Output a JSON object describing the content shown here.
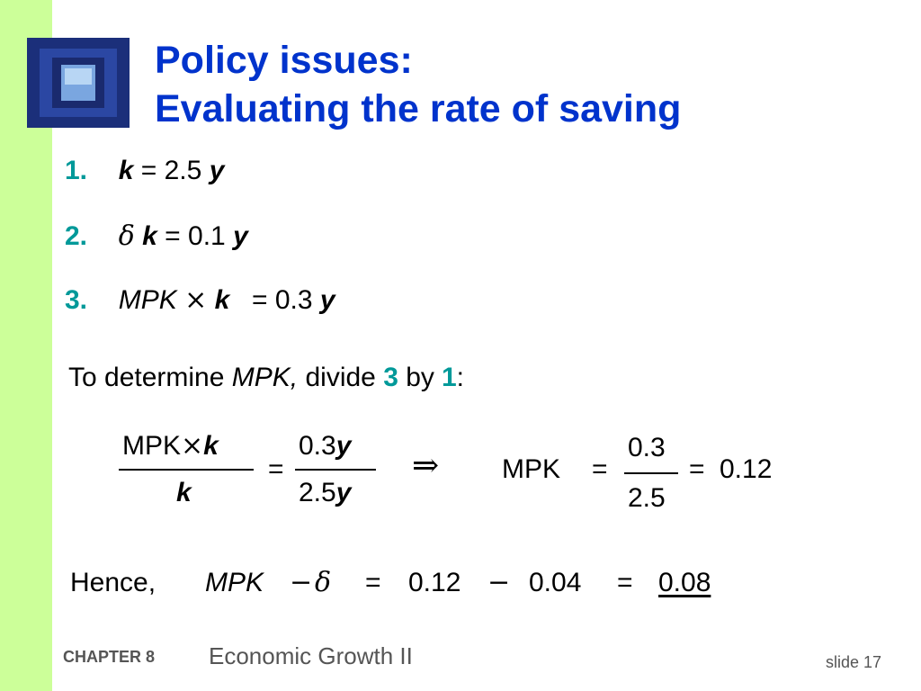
{
  "title": {
    "line1": "Policy issues:",
    "line2": "Evaluating the rate of saving"
  },
  "list": [
    {
      "num": "1.",
      "parts": [
        "k",
        "=",
        "2.5",
        "y"
      ]
    },
    {
      "num": "2.",
      "parts": [
        "δ",
        "k",
        "=",
        "0.1",
        "y"
      ]
    },
    {
      "num": "3.",
      "parts": [
        "MPK",
        "×",
        "k",
        "=",
        "0.3",
        "y"
      ]
    }
  ],
  "instruction": {
    "pre": "To determine",
    "mpk": "MPK,",
    "mid": "divide",
    "n3": "3",
    "by": "by",
    "n1": "1",
    "colon": ":"
  },
  "fraction_eq": {
    "num_left": "MPK",
    "times": "×",
    "k": "k",
    "den_left": "k",
    "equals": "=",
    "num_mid": "0.3",
    "y": "y",
    "den_mid": "2.5",
    "implies": "⇒",
    "mpk": "MPK",
    "num_right": "0.3",
    "den_right": "2.5",
    "result": "0.12"
  },
  "hence": {
    "label": "Hence,",
    "mpk": "MPK",
    "minus": "−",
    "delta": "δ",
    "eq1": "=",
    "v1": "0.12",
    "v2": "0.04",
    "eq2": "=",
    "result": "0.08"
  },
  "footer": {
    "chapter": "CHAPTER 8",
    "title": "Economic Growth II",
    "slide": "slide 17"
  },
  "colors": {
    "sidebar": "#ccff99",
    "title": "#0033cc",
    "accent": "#009999",
    "footer": "#555555"
  }
}
